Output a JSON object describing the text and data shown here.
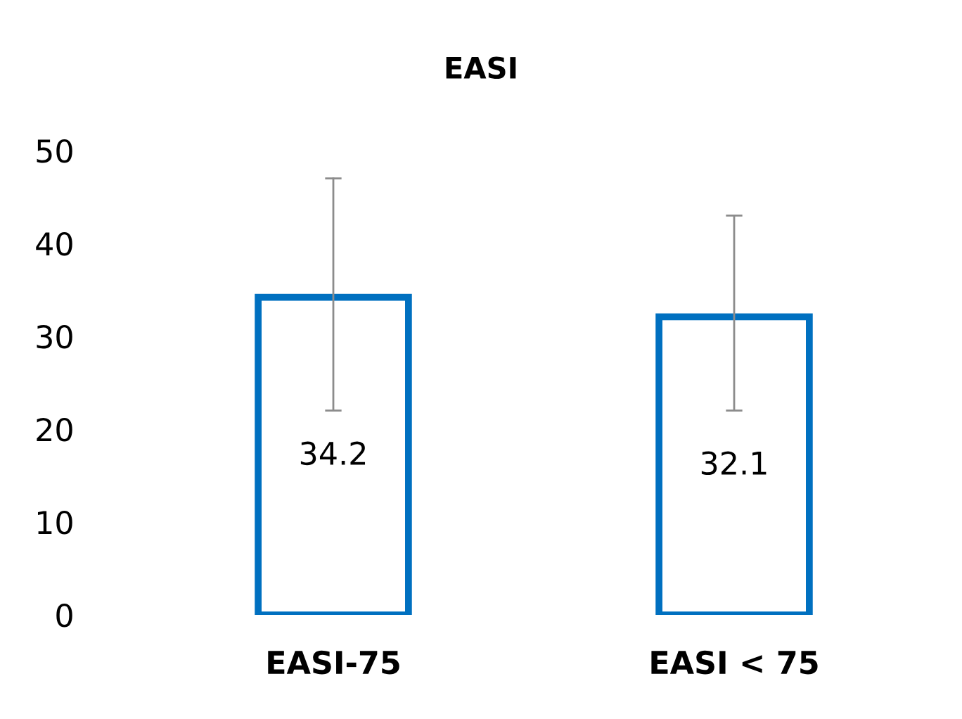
{
  "chart_data": {
    "type": "bar",
    "title": "EASI",
    "categories": [
      "EASI-75",
      "EASI < 75"
    ],
    "series": [
      {
        "color": "#0070c0",
        "values": [
          34.2,
          32.1
        ],
        "errors": [
          [
            22,
            47
          ],
          [
            22,
            43
          ]
        ]
      }
    ],
    "ylim": [
      0,
      50
    ],
    "yticks": [
      0,
      10,
      20,
      30,
      40,
      50
    ],
    "grid": false,
    "data_labels": true
  }
}
